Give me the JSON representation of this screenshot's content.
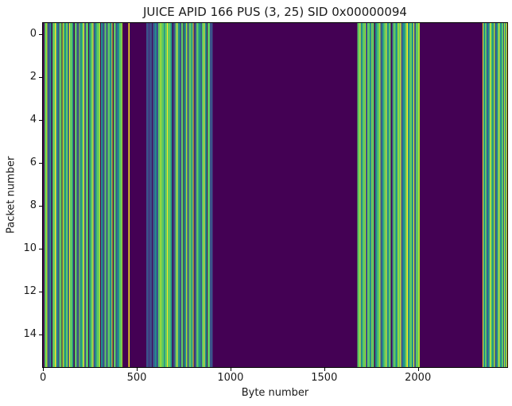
{
  "figure": {
    "title": "JUICE APID 166 PUS (3, 25) SID 0x00000094",
    "xlabel": "Byte number",
    "ylabel": "Packet number"
  },
  "chart_data": {
    "type": "heatmap",
    "title": "JUICE APID 166 PUS (3, 25) SID 0x00000094",
    "xlabel": "Byte number",
    "ylabel": "Packet number",
    "x_ticks": [
      0,
      500,
      1000,
      1500,
      2000
    ],
    "y_ticks": [
      0,
      2,
      4,
      6,
      8,
      10,
      12,
      14
    ],
    "xlim": [
      -0.5,
      2476.5
    ],
    "ylim": [
      15.5,
      -0.5
    ],
    "n_bytes": 2477,
    "n_packets": 16,
    "rows_identical": true,
    "colormap": "viridis",
    "background_color": "#440154",
    "grid": false,
    "legend": false,
    "palette": [
      "#440154",
      "#46327e",
      "#3b528b",
      "#2c728e",
      "#21918c",
      "#27ad81",
      "#5ec962",
      "#aadc32",
      "#fde725"
    ],
    "stripe_runs": [
      [
        8,
        0
      ],
      [
        10,
        6
      ],
      [
        6,
        7
      ],
      [
        12,
        2
      ],
      [
        8,
        4
      ],
      [
        6,
        0
      ],
      [
        14,
        6
      ],
      [
        5,
        8
      ],
      [
        10,
        4
      ],
      [
        8,
        2
      ],
      [
        12,
        6
      ],
      [
        5,
        0
      ],
      [
        8,
        7
      ],
      [
        12,
        4
      ],
      [
        10,
        6
      ],
      [
        6,
        2
      ],
      [
        4,
        8
      ],
      [
        12,
        6
      ],
      [
        8,
        4
      ],
      [
        6,
        0
      ],
      [
        10,
        6
      ],
      [
        12,
        2
      ],
      [
        6,
        7
      ],
      [
        10,
        4
      ],
      [
        8,
        6
      ],
      [
        4,
        8
      ],
      [
        10,
        2
      ],
      [
        12,
        6
      ],
      [
        5,
        0
      ],
      [
        8,
        4
      ],
      [
        10,
        6
      ],
      [
        4,
        8
      ],
      [
        8,
        2
      ],
      [
        10,
        4
      ],
      [
        12,
        6
      ],
      [
        6,
        7
      ],
      [
        5,
        0
      ],
      [
        8,
        4
      ],
      [
        10,
        2
      ],
      [
        9,
        6
      ],
      [
        8,
        2
      ],
      [
        12,
        6
      ],
      [
        10,
        4
      ],
      [
        4,
        8
      ],
      [
        6,
        0
      ],
      [
        12,
        6
      ],
      [
        8,
        2
      ],
      [
        10,
        4
      ],
      [
        12,
        6
      ],
      [
        6,
        7
      ],
      [
        32,
        0
      ],
      [
        6,
        8
      ],
      [
        89,
        0
      ],
      [
        10,
        2
      ],
      [
        8,
        1
      ],
      [
        12,
        2
      ],
      [
        4,
        0
      ],
      [
        10,
        2
      ],
      [
        8,
        4
      ],
      [
        12,
        2
      ],
      [
        10,
        6
      ],
      [
        6,
        7
      ],
      [
        12,
        6
      ],
      [
        8,
        4
      ],
      [
        10,
        6
      ],
      [
        4,
        8
      ],
      [
        14,
        6
      ],
      [
        10,
        4
      ],
      [
        6,
        0
      ],
      [
        10,
        2
      ],
      [
        8,
        6
      ],
      [
        4,
        8
      ],
      [
        12,
        4
      ],
      [
        8,
        2
      ],
      [
        10,
        6
      ],
      [
        5,
        0
      ],
      [
        10,
        4
      ],
      [
        6,
        7
      ],
      [
        10,
        2
      ],
      [
        12,
        6
      ],
      [
        8,
        4
      ],
      [
        4,
        8
      ],
      [
        6,
        0
      ],
      [
        10,
        2
      ],
      [
        10,
        6
      ],
      [
        12,
        4
      ],
      [
        8,
        2
      ],
      [
        10,
        6
      ],
      [
        4,
        8
      ],
      [
        10,
        4
      ],
      [
        6,
        0
      ],
      [
        12,
        6
      ],
      [
        14,
        2
      ],
      [
        773,
        0
      ],
      [
        12,
        6
      ],
      [
        5,
        8
      ],
      [
        10,
        4
      ],
      [
        12,
        6
      ],
      [
        6,
        7
      ],
      [
        8,
        2
      ],
      [
        12,
        6
      ],
      [
        10,
        4
      ],
      [
        4,
        8
      ],
      [
        10,
        6
      ],
      [
        5,
        0
      ],
      [
        12,
        4
      ],
      [
        10,
        6
      ],
      [
        6,
        7
      ],
      [
        8,
        2
      ],
      [
        10,
        4
      ],
      [
        12,
        6
      ],
      [
        4,
        8
      ],
      [
        10,
        4
      ],
      [
        12,
        6
      ],
      [
        5,
        0
      ],
      [
        8,
        2
      ],
      [
        12,
        6
      ],
      [
        10,
        4
      ],
      [
        6,
        7
      ],
      [
        10,
        6
      ],
      [
        4,
        8
      ],
      [
        8,
        2
      ],
      [
        12,
        4
      ],
      [
        10,
        6
      ],
      [
        5,
        8
      ],
      [
        9,
        4
      ],
      [
        12,
        6
      ],
      [
        10,
        4
      ],
      [
        4,
        8
      ],
      [
        8,
        2
      ],
      [
        12,
        6
      ],
      [
        9,
        7
      ],
      [
        335,
        0
      ],
      [
        4,
        8
      ],
      [
        10,
        4
      ],
      [
        8,
        6
      ],
      [
        6,
        2
      ],
      [
        10,
        4
      ],
      [
        4,
        8
      ],
      [
        10,
        6
      ],
      [
        8,
        4
      ],
      [
        6,
        7
      ],
      [
        8,
        2
      ],
      [
        8,
        4
      ],
      [
        6,
        6
      ],
      [
        4,
        8
      ],
      [
        10,
        4
      ],
      [
        8,
        6
      ],
      [
        6,
        2
      ],
      [
        6,
        7
      ],
      [
        6,
        4
      ],
      [
        4,
        8
      ]
    ]
  }
}
